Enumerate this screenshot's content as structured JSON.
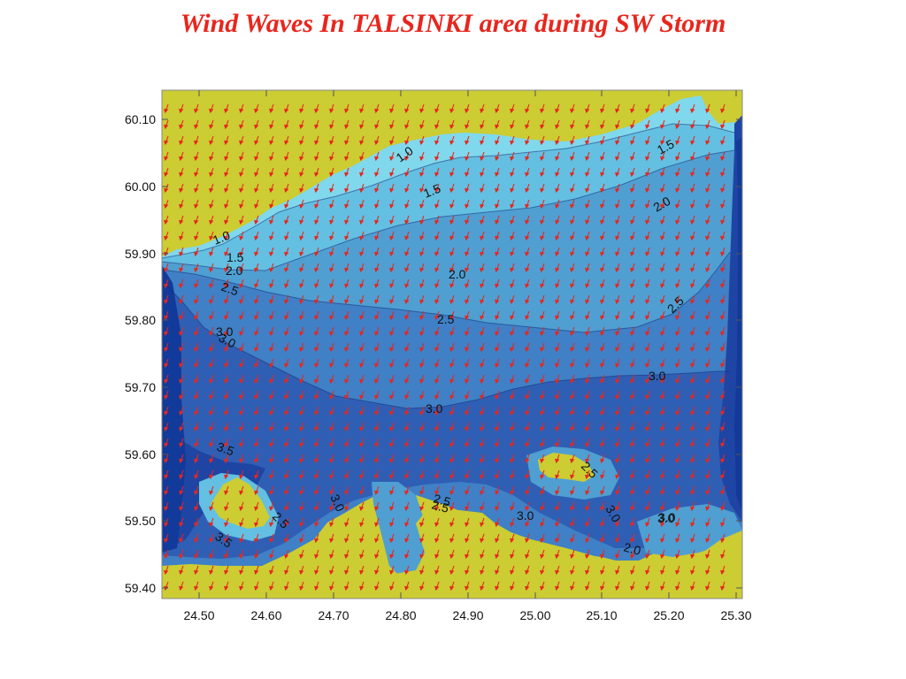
{
  "title": "Wind Waves In TALSINKI area during SW Storm",
  "x_axis": {
    "ticks": [
      "24.50",
      "24.60",
      "24.70",
      "24.80",
      "24.90",
      "25.00",
      "25.10",
      "25.20",
      "25.30"
    ]
  },
  "y_axis": {
    "ticks": [
      "60.10",
      "60.00",
      "59.90",
      "59.80",
      "59.70",
      "59.60",
      "59.50",
      "59.40"
    ]
  },
  "contour_labels": [
    "1.0",
    "1.5",
    "2.0",
    "2.5",
    "3.0",
    "3.5",
    "3.0",
    "2.5",
    "1.5",
    "2.0",
    "2.5",
    "3.0",
    "1.0",
    "1.5",
    "2.0",
    "2.5",
    "3.0",
    "3.5",
    "2.5",
    "3.0",
    "3.0",
    "3.0",
    "2.0",
    "2.5",
    "2.5",
    "3.0",
    "3.0"
  ],
  "colors": {
    "land": "#cccc33",
    "level_1": "#80d8ec",
    "level_1_5": "#63c0e2",
    "level_2": "#4f9fd2",
    "level_2_5": "#3f80c6",
    "level_3": "#2f5fb4",
    "level_3_5": "#1f45a4",
    "arrows": "#e8261d"
  }
}
